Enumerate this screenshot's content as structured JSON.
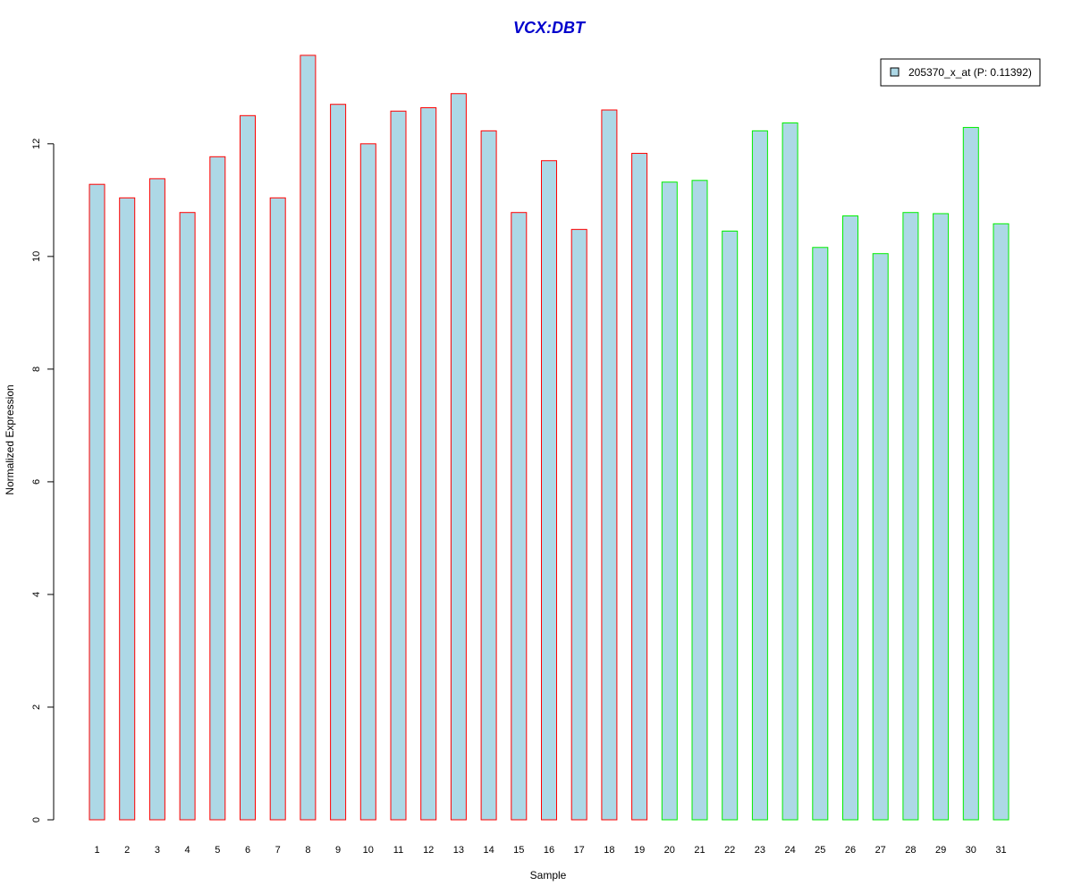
{
  "chart_data": {
    "type": "bar",
    "title": "VCX:DBT",
    "xlabel": "Sample",
    "ylabel": "Normalized Expression",
    "categories": [
      "1",
      "2",
      "3",
      "4",
      "5",
      "6",
      "7",
      "8",
      "9",
      "10",
      "11",
      "12",
      "13",
      "14",
      "15",
      "16",
      "17",
      "18",
      "19",
      "20",
      "21",
      "22",
      "23",
      "24",
      "25",
      "26",
      "27",
      "28",
      "29",
      "30",
      "31"
    ],
    "series": [
      {
        "name": "205370_x_at (P: 0.11392)",
        "values": [
          11.28,
          11.04,
          11.38,
          10.78,
          11.77,
          12.5,
          11.04,
          13.57,
          12.7,
          12.0,
          12.58,
          12.64,
          12.89,
          12.23,
          10.78,
          11.7,
          10.48,
          12.6,
          11.83,
          11.32,
          11.35,
          10.45,
          12.23,
          12.37,
          10.16,
          10.72,
          10.05,
          10.78,
          10.76,
          12.29,
          10.58
        ]
      }
    ],
    "groups": [
      1,
      1,
      1,
      1,
      1,
      1,
      1,
      1,
      1,
      1,
      1,
      1,
      1,
      1,
      1,
      1,
      1,
      1,
      1,
      2,
      2,
      2,
      2,
      2,
      2,
      2,
      2,
      2,
      2,
      2,
      2
    ],
    "yticks": [
      0,
      2,
      4,
      6,
      8,
      10,
      12
    ],
    "ylim": [
      0,
      13.6
    ],
    "grid": false,
    "legend_position": "top-right",
    "colors": {
      "title": "#0000cc",
      "bar_fill": "#add8e6",
      "group1_border": "#ff0000",
      "group2_border": "#00ee00",
      "axis": "#000000"
    }
  }
}
